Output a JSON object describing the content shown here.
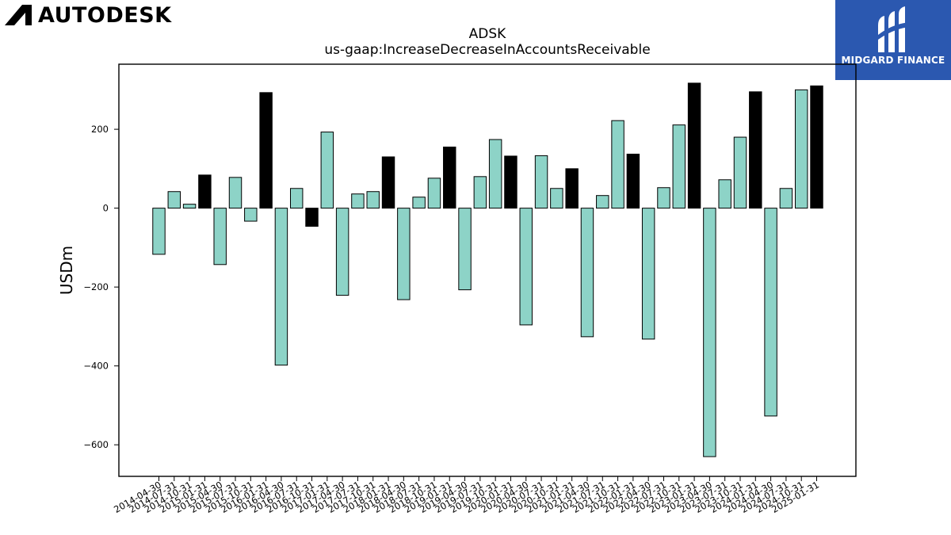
{
  "brand": {
    "logo_text": "AUTODESK"
  },
  "partner": {
    "logo_text": "MIDGARD FINANCE"
  },
  "colors": {
    "positive_fill": "#8dd3c7",
    "highlight_fill": "#000000",
    "stroke": "#000000"
  },
  "chart_data": {
    "type": "bar",
    "title": "ADSK",
    "subtitle": "us-gaap:IncreaseDecreaseInAccountsReceivable",
    "xlabel": "",
    "ylabel": "USDm",
    "ylim": [
      -680,
      365
    ],
    "yticks": [
      -600,
      -400,
      -200,
      0,
      200
    ],
    "grid": false,
    "categories": [
      "2014-04-30",
      "2014-07-31",
      "2014-10-31",
      "2015-01-31",
      "2015-04-30",
      "2015-07-31",
      "2015-10-31",
      "2016-01-31",
      "2016-04-30",
      "2016-07-31",
      "2016-10-31",
      "2017-01-31",
      "2017-04-30",
      "2017-07-31",
      "2017-10-31",
      "2018-01-31",
      "2018-04-30",
      "2018-07-31",
      "2018-10-31",
      "2019-01-31",
      "2019-04-30",
      "2019-07-31",
      "2019-10-31",
      "2020-01-31",
      "2020-04-30",
      "2020-07-31",
      "2020-10-31",
      "2021-01-31",
      "2021-04-30",
      "2021-07-31",
      "2021-10-31",
      "2022-01-31",
      "2022-04-30",
      "2022-07-31",
      "2022-10-31",
      "2023-01-31",
      "2023-04-30",
      "2023-07-31",
      "2023-10-31",
      "2024-01-31",
      "2024-04-30",
      "2024-07-31",
      "2024-10-31",
      "2025-01-31"
    ],
    "values": [
      -117,
      42,
      10,
      84,
      -143,
      78,
      -33,
      293,
      -398,
      50,
      -46,
      193,
      -221,
      36,
      42,
      130,
      -232,
      28,
      76,
      155,
      -207,
      80,
      174,
      132,
      -296,
      133,
      50,
      100,
      -326,
      32,
      222,
      137,
      -332,
      52,
      211,
      317,
      -630,
      72,
      180,
      295,
      -527,
      50,
      300,
      310
    ],
    "highlight_categories": [
      "2015-01-31",
      "2016-01-31",
      "2016-10-31",
      "2018-01-31",
      "2019-01-31",
      "2020-01-31",
      "2021-01-31",
      "2022-01-31",
      "2023-01-31",
      "2024-01-31",
      "2025-01-31"
    ]
  }
}
